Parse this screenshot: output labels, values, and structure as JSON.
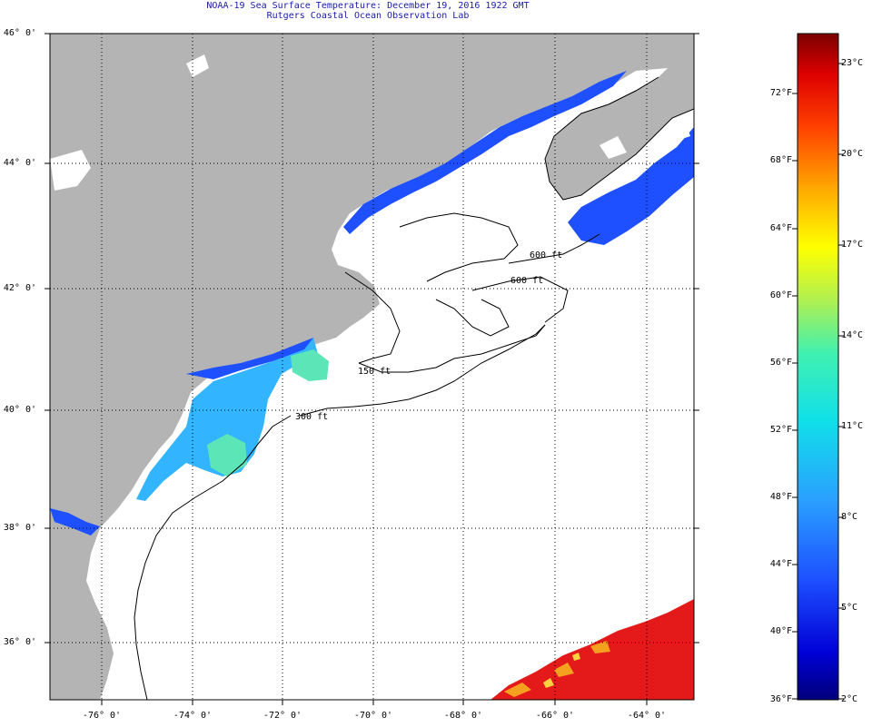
{
  "title_line1": "NOAA-19 Sea Surface Temperature:  December 19, 2016 1922 GMT",
  "title_line2": "Rutgers Coastal Ocean Observation Lab",
  "lat_ticks": [
    "46° 0'",
    "44° 0'",
    "42° 0'",
    "40° 0'",
    "38° 0'",
    "36° 0'"
  ],
  "lon_ticks": [
    "-76° 0'",
    "-74° 0'",
    "-72° 0'",
    "-70° 0'",
    "-68° 0'",
    "-66° 0'",
    "-64° 0'"
  ],
  "depth_contours": [
    "150 ft",
    "300 ft",
    "600 ft",
    "600 ft"
  ],
  "colorbar": {
    "fahrenheit": [
      "72°F",
      "68°F",
      "64°F",
      "60°F",
      "56°F",
      "52°F",
      "48°F",
      "44°F",
      "40°F",
      "36°F"
    ],
    "celsius": [
      "23°C",
      "20°C",
      "17°C",
      "14°C",
      "11°C",
      "8°C",
      "5°C",
      "2°C"
    ],
    "range_f": [
      36,
      75
    ],
    "range_c": [
      2,
      24
    ]
  },
  "colors": {
    "land": "#b4b4b4",
    "ocean_nodata": "#ffffff",
    "cold_water": "#1e50ff",
    "shelf_water": "#32b4ff",
    "warm_water": "#e41a1a",
    "title": "#1a1aa8"
  }
}
